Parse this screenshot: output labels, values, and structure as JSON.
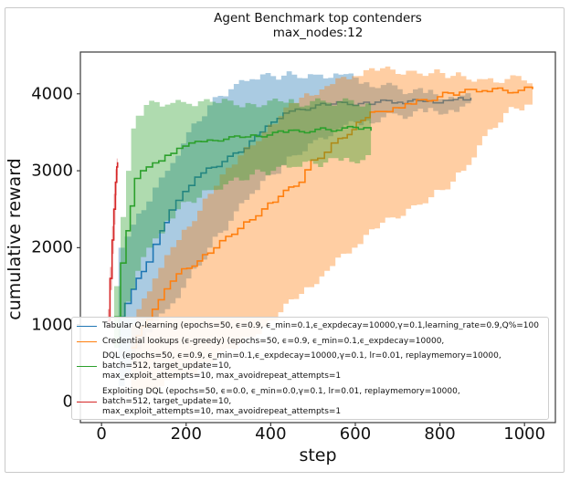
{
  "figure": {
    "title_line1": "Agent Benchmark top contenders",
    "title_line2": "max_nodes:12",
    "xlabel": "step",
    "ylabel": "cumulative reward"
  },
  "axes": {
    "x_ticks": [
      0,
      200,
      400,
      600,
      800,
      1000
    ],
    "y_ticks": [
      0,
      1000,
      2000,
      3000,
      4000
    ],
    "xlim": [
      -50,
      1073
    ],
    "ylim": [
      -273,
      4543
    ],
    "grid": false,
    "spine_color": "#3a3a3a"
  },
  "colors": {
    "blue": "#1f77b4",
    "orange": "#ff7f0e",
    "green": "#2ca02c",
    "red": "#d62728",
    "legend_border": "#cfcfcf",
    "outer_border": "#c9c9c9"
  },
  "legend": {
    "entries": [
      {
        "series": "blue",
        "color": "#1f77b4",
        "lines": [
          "Tabular Q-learning (epochs=50, ϵ=0.9, ϵ_min=0.1,ϵ_expdecay=10000,γ=0.1,learning_rate=0.9,Q%=100"
        ]
      },
      {
        "series": "orange",
        "color": "#ff7f0e",
        "lines": [
          "Credential lookups (ϵ-greedy) (epochs=50, ϵ=0.9, ϵ_min=0.1,ϵ_expdecay=10000,"
        ]
      },
      {
        "series": "green",
        "color": "#2ca02c",
        "lines": [
          "DQL (epochs=50, ϵ=0.9, ϵ_min=0.1,ϵ_expdecay=10000,γ=0.1, lr=0.01, replaymemory=10000,",
          "batch=512, target_update=10,",
          "max_exploit_attempts=10, max_avoidrepeat_attempts=1"
        ]
      },
      {
        "series": "red",
        "color": "#d62728",
        "lines": [
          "Exploiting DQL (epochs=50, ϵ=0.0, ϵ_min=0.0,γ=0.1, lr=0.01, replaymemory=10000,",
          "batch=512, target_update=10,",
          "max_exploit_attempts=10, max_avoidrepeat_attempts=1"
        ]
      }
    ]
  },
  "chart_data": {
    "type": "line",
    "title": "Agent Benchmark top contenders max_nodes:12",
    "xlabel": "step",
    "ylabel": "cumulative reward",
    "xlim": [
      -50,
      1073
    ],
    "ylim": [
      -273,
      4543
    ],
    "legend_position": "lower-left",
    "series": [
      {
        "name": "Tabular Q-learning",
        "color": "#1f77b4",
        "jitter": 30,
        "line": [
          [
            40,
            1100
          ],
          [
            70,
            1460
          ],
          [
            106,
            1815
          ],
          [
            138,
            2220
          ],
          [
            160,
            2490
          ],
          [
            192,
            2730
          ],
          [
            235,
            2970
          ],
          [
            285,
            3120
          ],
          [
            337,
            3290
          ],
          [
            387,
            3580
          ],
          [
            415,
            3680
          ],
          [
            458,
            3800
          ],
          [
            530,
            3855
          ],
          [
            620,
            3890
          ],
          [
            700,
            3890
          ],
          [
            760,
            3900
          ],
          [
            820,
            3915
          ],
          [
            855,
            3920
          ],
          [
            873,
            3950
          ]
        ],
        "band_upper": [
          [
            40,
            2000
          ],
          [
            70,
            2300
          ],
          [
            106,
            2600
          ],
          [
            150,
            3000
          ],
          [
            200,
            3500
          ],
          [
            250,
            3850
          ],
          [
            300,
            4060
          ],
          [
            350,
            4190
          ],
          [
            400,
            4230
          ],
          [
            450,
            4250
          ],
          [
            500,
            4250
          ],
          [
            560,
            4250
          ],
          [
            620,
            4150
          ],
          [
            700,
            4060
          ],
          [
            760,
            4010
          ],
          [
            820,
            3960
          ],
          [
            873,
            3950
          ]
        ],
        "band_lower": [
          [
            40,
            200
          ],
          [
            70,
            500
          ],
          [
            106,
            900
          ],
          [
            150,
            1200
          ],
          [
            200,
            1600
          ],
          [
            250,
            2000
          ],
          [
            300,
            2350
          ],
          [
            350,
            2700
          ],
          [
            400,
            2950
          ],
          [
            450,
            3200
          ],
          [
            500,
            3400
          ],
          [
            560,
            3550
          ],
          [
            620,
            3650
          ],
          [
            700,
            3720
          ],
          [
            760,
            3760
          ],
          [
            820,
            3790
          ],
          [
            873,
            3830
          ]
        ]
      },
      {
        "name": "Credential lookups (ϵ-greedy)",
        "color": "#ff7f0e",
        "jitter": 35,
        "line": [
          [
            70,
            700
          ],
          [
            120,
            1200
          ],
          [
            177,
            1660
          ],
          [
            251,
            1930
          ],
          [
            322,
            2250
          ],
          [
            393,
            2580
          ],
          [
            467,
            2850
          ],
          [
            495,
            3140
          ],
          [
            527,
            3240
          ],
          [
            559,
            3420
          ],
          [
            592,
            3535
          ],
          [
            613,
            3655
          ],
          [
            646,
            3770
          ],
          [
            689,
            3820
          ],
          [
            732,
            3867
          ],
          [
            819,
            4010
          ],
          [
            900,
            4040
          ],
          [
            985,
            4045
          ],
          [
            1000,
            4085
          ],
          [
            1019,
            4060
          ]
        ],
        "band_upper": [
          [
            70,
            1000
          ],
          [
            120,
            1600
          ],
          [
            177,
            2100
          ],
          [
            251,
            2700
          ],
          [
            322,
            3200
          ],
          [
            393,
            3600
          ],
          [
            467,
            3950
          ],
          [
            527,
            4100
          ],
          [
            592,
            4230
          ],
          [
            646,
            4300
          ],
          [
            732,
            4300
          ],
          [
            800,
            4270
          ],
          [
            850,
            4230
          ],
          [
            900,
            4190
          ],
          [
            1019,
            4190
          ]
        ],
        "band_lower": [
          [
            70,
            100
          ],
          [
            120,
            150
          ],
          [
            177,
            300
          ],
          [
            251,
            500
          ],
          [
            322,
            750
          ],
          [
            393,
            1050
          ],
          [
            467,
            1400
          ],
          [
            527,
            1700
          ],
          [
            592,
            2000
          ],
          [
            646,
            2250
          ],
          [
            732,
            2550
          ],
          [
            800,
            2750
          ],
          [
            850,
            3000
          ],
          [
            900,
            3450
          ],
          [
            950,
            3750
          ],
          [
            1000,
            3860
          ],
          [
            1019,
            3870
          ]
        ]
      },
      {
        "name": "DQL",
        "color": "#2ca02c",
        "jitter": 25,
        "line": [
          [
            30,
            1100
          ],
          [
            45,
            1800
          ],
          [
            58,
            2220
          ],
          [
            78,
            2900
          ],
          [
            106,
            3050
          ],
          [
            150,
            3200
          ],
          [
            192,
            3320
          ],
          [
            250,
            3400
          ],
          [
            340,
            3440
          ],
          [
            430,
            3500
          ],
          [
            530,
            3535
          ],
          [
            620,
            3560
          ],
          [
            637,
            3520
          ]
        ],
        "band_upper": [
          [
            30,
            1500
          ],
          [
            45,
            2400
          ],
          [
            58,
            3000
          ],
          [
            70,
            3550
          ],
          [
            81,
            3715
          ],
          [
            100,
            3855
          ],
          [
            150,
            3860
          ],
          [
            200,
            3870
          ],
          [
            270,
            3880
          ],
          [
            340,
            3880
          ],
          [
            430,
            3885
          ],
          [
            530,
            3885
          ],
          [
            637,
            3890
          ]
        ],
        "band_lower": [
          [
            30,
            700
          ],
          [
            45,
            1100
          ],
          [
            58,
            1300
          ],
          [
            80,
            1700
          ],
          [
            106,
            2000
          ],
          [
            150,
            2350
          ],
          [
            200,
            2600
          ],
          [
            250,
            2750
          ],
          [
            300,
            2870
          ],
          [
            350,
            2950
          ],
          [
            400,
            3000
          ],
          [
            450,
            3050
          ],
          [
            500,
            3090
          ],
          [
            560,
            3130
          ],
          [
            637,
            3170
          ]
        ]
      },
      {
        "name": "Exploiting DQL",
        "color": "#d62728",
        "jitter": 8,
        "line": [
          [
            15,
            1050
          ],
          [
            20,
            1600
          ],
          [
            25,
            2100
          ],
          [
            29,
            2500
          ],
          [
            33,
            2850
          ],
          [
            36,
            3050
          ],
          [
            38,
            3110
          ]
        ],
        "band_upper": [
          [
            15,
            1200
          ],
          [
            20,
            1750
          ],
          [
            25,
            2280
          ],
          [
            29,
            2700
          ],
          [
            33,
            3020
          ],
          [
            36,
            3160
          ],
          [
            38,
            3180
          ]
        ],
        "band_lower": [
          [
            15,
            950
          ],
          [
            20,
            1450
          ],
          [
            25,
            1920
          ],
          [
            29,
            2300
          ],
          [
            33,
            2680
          ],
          [
            36,
            2940
          ],
          [
            38,
            3040
          ]
        ]
      }
    ]
  }
}
